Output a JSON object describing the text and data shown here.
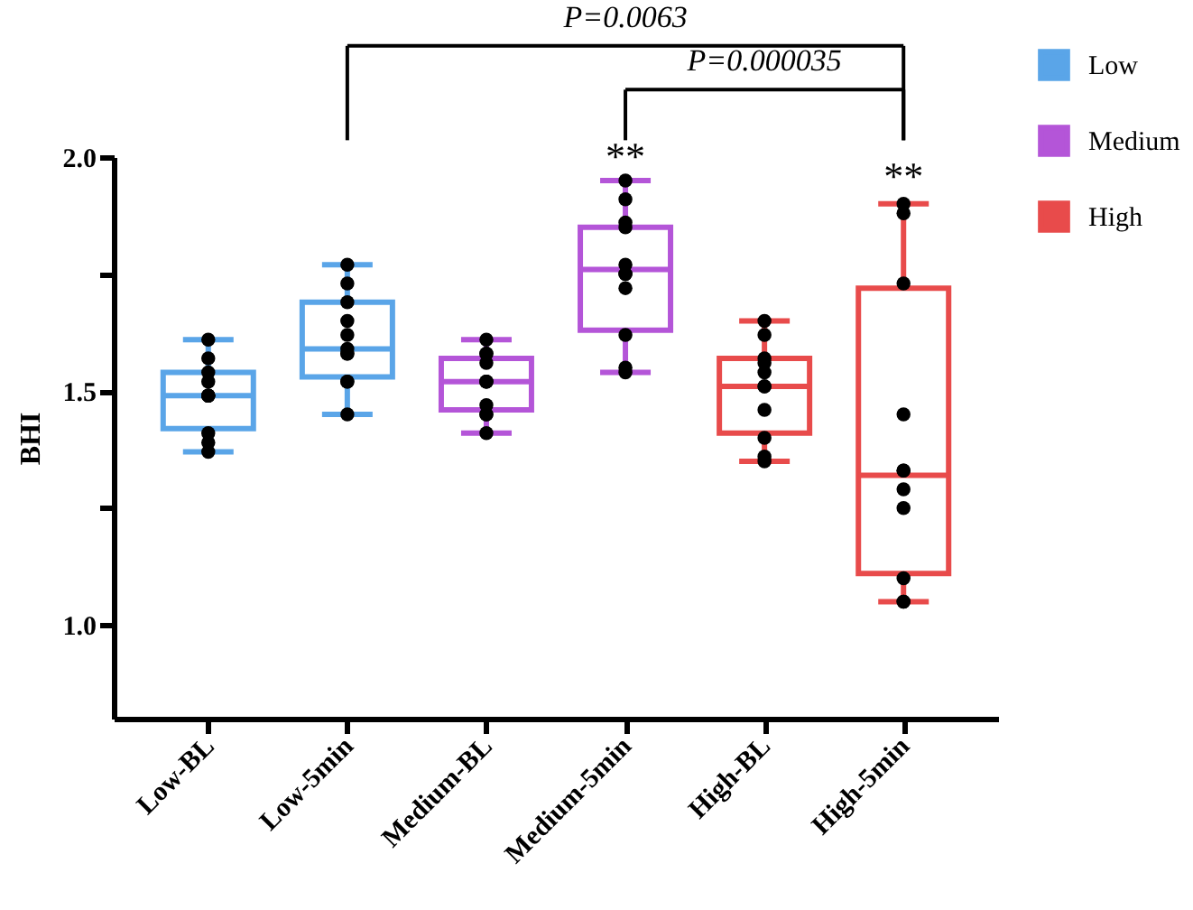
{
  "chart_data": {
    "type": "box",
    "ylabel": "BHI",
    "categories": [
      "Low-BL",
      "Low-5min",
      "Medium-BL",
      "Medium-5min",
      "High-BL",
      "High-5min"
    ],
    "ylim": [
      0.8,
      2.0
    ],
    "yticks": [
      {
        "value": 1,
        "label": "1.0"
      },
      {
        "value": 1.25,
        "label": null
      },
      1.5,
      {
        "value": 1.75,
        "label": null
      },
      {
        "value": 2,
        "label": "2.0"
      }
    ],
    "legend": "top right",
    "grid": false,
    "annotations": [
      "P=0.0063",
      "P=0.000035",
      "**",
      "**"
    ],
    "series": [
      {
        "name": "Low",
        "color": "#5aa5e8",
        "boxes": [
          {
            "low": 1.37,
            "q1": 1.42,
            "median": 1.49,
            "q3": 1.54,
            "high": 1.61
          },
          {
            "low": 1.45,
            "q1": 1.53,
            "median": 1.59,
            "q3": 1.69,
            "high": 1.77
          },
          null,
          null,
          null,
          null
        ]
      },
      {
        "name": "Medium",
        "color": "#b455d8",
        "boxes": [
          null,
          null,
          {
            "low": 1.41,
            "q1": 1.46,
            "median": 1.52,
            "q3": 1.57,
            "high": 1.61
          },
          {
            "low": 1.54,
            "q1": 1.63,
            "median": 1.76,
            "q3": 1.85,
            "high": 1.95
          },
          null,
          null
        ]
      },
      {
        "name": "High",
        "color": "#e84b4b",
        "boxes": [
          null,
          null,
          null,
          null,
          {
            "low": 1.35,
            "q1": 1.41,
            "median": 1.51,
            "q3": 1.57,
            "high": 1.65
          },
          {
            "low": 1.05,
            "q1": 1.11,
            "median": 1.32,
            "q3": 1.72,
            "high": 1.9
          }
        ]
      },
      {
        "type": "scatter",
        "color": "#000000",
        "marker": "circle",
        "x": [
          "Low-BL",
          "Low-BL",
          "Low-BL",
          "Low-BL",
          "Low-BL",
          "Low-BL",
          "Low-BL",
          "Low-BL",
          "Low-BL",
          "Low-BL",
          "Low-BL",
          "Low-5min",
          "Low-5min",
          "Low-5min",
          "Low-5min",
          "Low-5min",
          "Low-5min",
          "Low-5min",
          "Low-5min",
          "Low-5min",
          "Low-5min",
          "Low-5min",
          "Medium-BL",
          "Medium-BL",
          "Medium-BL",
          "Medium-BL",
          "Medium-BL",
          "Medium-BL",
          "Medium-BL",
          "Medium-BL",
          "Medium-BL",
          "Medium-BL",
          "Medium-BL",
          "Medium-5min",
          "Medium-5min",
          "Medium-5min",
          "Medium-5min",
          "Medium-5min",
          "Medium-5min",
          "Medium-5min",
          "Medium-5min",
          "Medium-5min",
          "Medium-5min",
          "Medium-5min",
          "High-BL",
          "High-BL",
          "High-BL",
          "High-BL",
          "High-BL",
          "High-BL",
          "High-BL",
          "High-BL",
          "High-BL",
          "High-BL",
          "High-BL",
          "High-5min",
          "High-5min",
          "High-5min",
          "High-5min",
          "High-5min",
          "High-5min",
          "High-5min",
          "High-5min",
          "High-5min",
          "High-5min",
          "High-5min"
        ],
        "values": [
          1.61,
          1.57,
          1.54,
          1.52,
          1.49,
          1.49,
          1.49,
          1.49,
          1.41,
          1.39,
          1.37,
          1.77,
          1.73,
          1.69,
          1.65,
          1.62,
          1.59,
          1.58,
          1.58,
          1.52,
          1.52,
          1.45,
          1.61,
          1.58,
          1.58,
          1.56,
          1.52,
          1.52,
          1.52,
          1.47,
          1.45,
          1.45,
          1.41,
          1.95,
          1.91,
          1.86,
          1.85,
          1.77,
          1.75,
          1.75,
          1.72,
          1.62,
          1.55,
          1.54,
          1.65,
          1.62,
          1.57,
          1.56,
          1.54,
          1.51,
          1.51,
          1.46,
          1.4,
          1.36,
          1.35,
          1.9,
          1.88,
          1.73,
          1.45,
          1.33,
          1.33,
          1.29,
          1.25,
          1.1,
          1.05,
          1.05
        ]
      }
    ]
  }
}
